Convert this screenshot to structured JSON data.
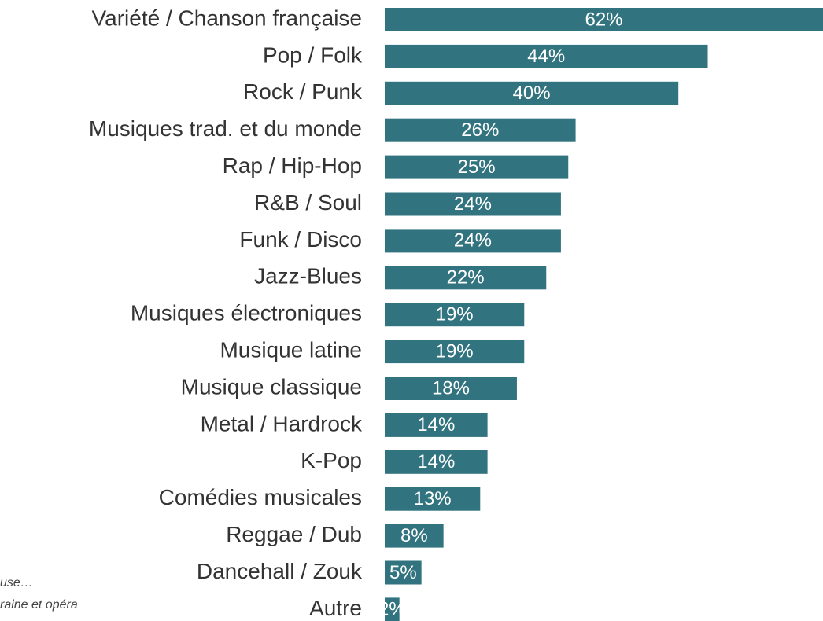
{
  "chart_data": {
    "type": "bar",
    "orientation": "horizontal",
    "categories": [
      "Variété / Chanson française",
      "Pop / Folk",
      "Rock / Punk",
      "Musiques trad. et du monde",
      "Rap / Hip-Hop",
      "R&B / Soul",
      "Funk / Disco",
      "Jazz-Blues",
      "Musiques électroniques",
      "Musique latine",
      "Musique classique",
      "Metal / Hardrock",
      "K-Pop",
      "Comédies musicales",
      "Reggae / Dub",
      "Dancehall / Zouk",
      "Autre"
    ],
    "values": [
      62,
      44,
      40,
      26,
      25,
      24,
      24,
      22,
      19,
      19,
      18,
      14,
      14,
      13,
      8,
      5,
      2
    ],
    "value_labels": [
      "62%",
      "44%",
      "40%",
      "26%",
      "25%",
      "24%",
      "24%",
      "22%",
      "19%",
      "19%",
      "18%",
      "14%",
      "14%",
      "13%",
      "8%",
      "5%",
      "2%"
    ],
    "color": "#31737e",
    "annotations": [
      "use…",
      "raine et opéra"
    ]
  }
}
